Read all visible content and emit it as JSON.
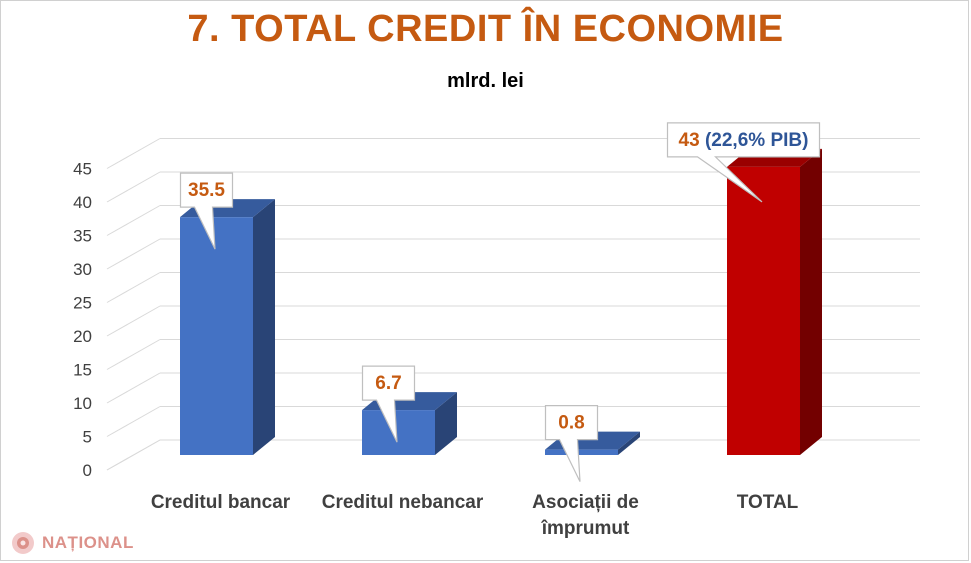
{
  "chart_data": {
    "type": "bar",
    "title": "7. TOTAL CREDIT ÎN ECONOMIE",
    "subtitle": "mlrd. lei",
    "categories": [
      "Creditul bancar",
      "Creditul nebancar",
      "Asociații de\nîmprumut",
      "TOTAL"
    ],
    "values": [
      35.5,
      6.7,
      0.8,
      43
    ],
    "data_labels": [
      "35.5",
      "6.7",
      "0.8",
      "43"
    ],
    "total_annotation": "(22,6% PIB)",
    "y_ticks": [
      "0",
      "5",
      "10",
      "15",
      "20",
      "25",
      "30",
      "35",
      "40",
      "45"
    ],
    "ylim": [
      0,
      45
    ],
    "grid": true,
    "bar_colors": [
      "#4472c4",
      "#4472c4",
      "#4472c4",
      "#c00000"
    ],
    "label_colors": {
      "value": "#c55a11",
      "annotation": "#2e5597"
    }
  },
  "watermark": {
    "text": "NAȚIONAL",
    "icon": "rose-logo-icon"
  }
}
